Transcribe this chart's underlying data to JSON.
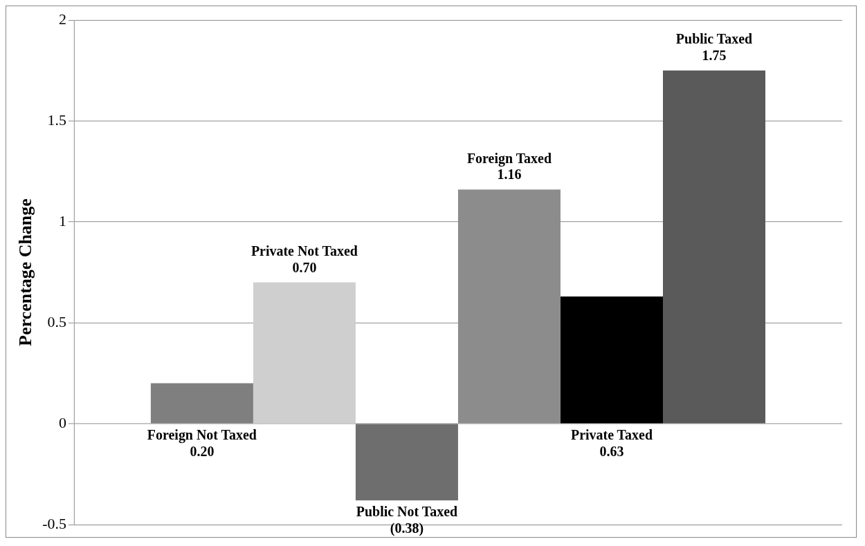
{
  "chart_data": {
    "type": "bar",
    "ylabel": "Percentage Change",
    "categories": [
      null
    ],
    "series": [
      {
        "name": "Foreign Not Taxed",
        "color": "#7f7f7f",
        "values": [
          0.2
        ],
        "value_labels": [
          "0.20"
        ]
      },
      {
        "name": "Private Not Taxed",
        "color": "#cfcfcf",
        "values": [
          0.7
        ],
        "value_labels": [
          "0.70"
        ]
      },
      {
        "name": "Public Not Taxed",
        "color": "#6e6e6e",
        "values": [
          -0.38
        ],
        "value_labels": [
          "(0.38)"
        ]
      },
      {
        "name": "Foreign Taxed",
        "color": "#8c8c8c",
        "values": [
          1.16
        ],
        "value_labels": [
          "1.16"
        ]
      },
      {
        "name": "Private Taxed",
        "color": "#000000",
        "values": [
          0.63
        ],
        "value_labels": [
          "0.63"
        ]
      },
      {
        "name": "Public Taxed",
        "color": "#5a5a5a",
        "values": [
          1.75
        ],
        "value_labels": [
          "1.75"
        ]
      }
    ],
    "ylim": [
      -0.5,
      2
    ],
    "yticks": [
      -0.5,
      0,
      0.5,
      1,
      1.5,
      2
    ],
    "grid": "y",
    "legend": false
  }
}
